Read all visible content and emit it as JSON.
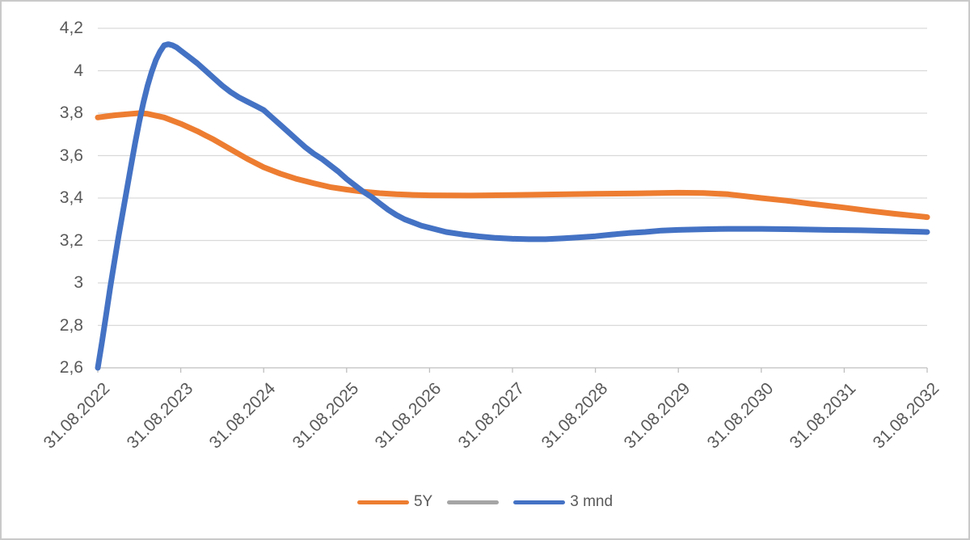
{
  "chart_data": {
    "type": "line",
    "title": "",
    "xlabel": "",
    "ylabel": "",
    "categories": [
      "31.08.2022",
      "31.08.2023",
      "31.08.2024",
      "31.08.2025",
      "31.08.2026",
      "31.08.2027",
      "31.08.2028",
      "31.08.2029",
      "31.08.2030",
      "31.08.2031",
      "31.08.2032"
    ],
    "ylim": [
      2.6,
      4.2
    ],
    "ytick_step": 0.2,
    "ytick_labels": [
      "4,2",
      "4",
      "3,8",
      "3,6",
      "3,4",
      "3,2",
      "3",
      "2,8",
      "2,6"
    ],
    "grid": true,
    "legend_position": "bottom-center",
    "series": [
      {
        "name": "5Y",
        "color": "#ED7D31",
        "values_at_ticks": [
          3.78,
          3.75,
          3.54,
          3.44,
          3.41,
          3.41,
          3.42,
          3.42,
          3.4,
          3.36,
          3.31
        ],
        "points": [
          [
            0,
            3.78
          ],
          [
            0.2,
            3.79
          ],
          [
            0.4,
            3.797
          ],
          [
            0.5,
            3.8
          ],
          [
            0.6,
            3.797
          ],
          [
            0.8,
            3.78
          ],
          [
            1.0,
            3.75
          ],
          [
            1.2,
            3.715
          ],
          [
            1.4,
            3.675
          ],
          [
            1.6,
            3.63
          ],
          [
            1.8,
            3.585
          ],
          [
            2.0,
            3.545
          ],
          [
            2.2,
            3.515
          ],
          [
            2.4,
            3.49
          ],
          [
            2.6,
            3.47
          ],
          [
            2.8,
            3.452
          ],
          [
            3.0,
            3.44
          ],
          [
            3.2,
            3.43
          ],
          [
            3.4,
            3.423
          ],
          [
            3.6,
            3.418
          ],
          [
            3.8,
            3.415
          ],
          [
            4.0,
            3.413
          ],
          [
            4.5,
            3.412
          ],
          [
            5.0,
            3.414
          ],
          [
            5.5,
            3.417
          ],
          [
            6.0,
            3.42
          ],
          [
            6.5,
            3.422
          ],
          [
            7.0,
            3.425
          ],
          [
            7.3,
            3.424
          ],
          [
            7.6,
            3.418
          ],
          [
            8.0,
            3.4
          ],
          [
            8.3,
            3.388
          ],
          [
            8.6,
            3.373
          ],
          [
            9.0,
            3.355
          ],
          [
            9.3,
            3.34
          ],
          [
            9.6,
            3.326
          ],
          [
            10,
            3.31
          ]
        ]
      },
      {
        "name": "",
        "color": "#A5A5A5",
        "values_at_ticks": [],
        "points": []
      },
      {
        "name": "3 mnd",
        "color": "#4472C4",
        "values_at_ticks": [
          2.6,
          4.1,
          3.82,
          3.49,
          3.26,
          3.21,
          3.22,
          3.25,
          3.25,
          3.25,
          3.24
        ],
        "points": [
          [
            0,
            2.6
          ],
          [
            0.05,
            2.72
          ],
          [
            0.1,
            2.85
          ],
          [
            0.15,
            2.98
          ],
          [
            0.2,
            3.1
          ],
          [
            0.25,
            3.22
          ],
          [
            0.3,
            3.33
          ],
          [
            0.35,
            3.44
          ],
          [
            0.4,
            3.55
          ],
          [
            0.45,
            3.66
          ],
          [
            0.5,
            3.76
          ],
          [
            0.55,
            3.85
          ],
          [
            0.6,
            3.93
          ],
          [
            0.65,
            3.995
          ],
          [
            0.7,
            4.05
          ],
          [
            0.75,
            4.09
          ],
          [
            0.8,
            4.12
          ],
          [
            0.85,
            4.125
          ],
          [
            0.9,
            4.12
          ],
          [
            0.95,
            4.11
          ],
          [
            1.0,
            4.095
          ],
          [
            1.1,
            4.065
          ],
          [
            1.2,
            4.035
          ],
          [
            1.3,
            4.0
          ],
          [
            1.4,
            3.965
          ],
          [
            1.5,
            3.93
          ],
          [
            1.6,
            3.9
          ],
          [
            1.7,
            3.875
          ],
          [
            1.8,
            3.855
          ],
          [
            1.9,
            3.835
          ],
          [
            2.0,
            3.815
          ],
          [
            2.1,
            3.78
          ],
          [
            2.2,
            3.745
          ],
          [
            2.3,
            3.71
          ],
          [
            2.4,
            3.675
          ],
          [
            2.5,
            3.64
          ],
          [
            2.6,
            3.61
          ],
          [
            2.7,
            3.585
          ],
          [
            2.8,
            3.555
          ],
          [
            2.9,
            3.525
          ],
          [
            3.0,
            3.49
          ],
          [
            3.1,
            3.46
          ],
          [
            3.2,
            3.43
          ],
          [
            3.3,
            3.405
          ],
          [
            3.4,
            3.375
          ],
          [
            3.5,
            3.345
          ],
          [
            3.6,
            3.32
          ],
          [
            3.7,
            3.3
          ],
          [
            3.8,
            3.285
          ],
          [
            3.9,
            3.27
          ],
          [
            4.0,
            3.26
          ],
          [
            4.2,
            3.24
          ],
          [
            4.4,
            3.228
          ],
          [
            4.6,
            3.219
          ],
          [
            4.8,
            3.212
          ],
          [
            5.0,
            3.208
          ],
          [
            5.2,
            3.206
          ],
          [
            5.4,
            3.206
          ],
          [
            5.6,
            3.21
          ],
          [
            5.8,
            3.215
          ],
          [
            6.0,
            3.22
          ],
          [
            6.2,
            3.228
          ],
          [
            6.4,
            3.235
          ],
          [
            6.6,
            3.24
          ],
          [
            6.8,
            3.247
          ],
          [
            7.0,
            3.25
          ],
          [
            7.3,
            3.253
          ],
          [
            7.6,
            3.255
          ],
          [
            8.0,
            3.255
          ],
          [
            8.4,
            3.253
          ],
          [
            8.8,
            3.25
          ],
          [
            9.2,
            3.248
          ],
          [
            9.6,
            3.244
          ],
          [
            10,
            3.24
          ]
        ]
      }
    ]
  },
  "legend": {
    "items": [
      {
        "label": "5Y",
        "color": "#ED7D31"
      },
      {
        "label": "",
        "color": "#A5A5A5"
      },
      {
        "label": "3 mnd",
        "color": "#4472C4"
      }
    ]
  },
  "colors": {
    "gridline": "#D9D9D9",
    "axis": "#BFBFBF",
    "axis_text": "#595959",
    "background": "#FFFFFF",
    "frame_border": "#C9C9C9"
  }
}
